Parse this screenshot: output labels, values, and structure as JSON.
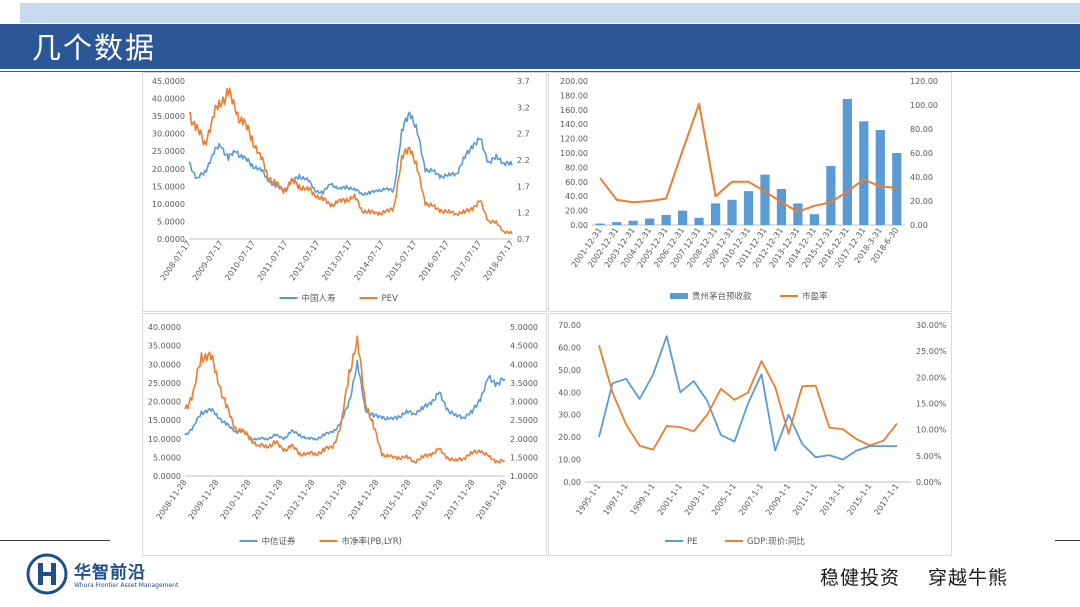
{
  "header": {
    "title": "几个数据"
  },
  "footer": {
    "logo_name": "华智前沿",
    "logo_en": "Whura Frontier Asset Management",
    "slogan_left": "稳健投资",
    "slogan_right": "穿越牛熊"
  },
  "colors": {
    "blue": "#5b9bd5",
    "orange": "#ed7d31",
    "header": "#2b5697",
    "axis": "#595959",
    "grid": "#d9d9d9"
  },
  "chart_data": [
    {
      "id": "c1",
      "type": "line",
      "x_ticks": [
        "2008-07-17",
        "2009-07-17",
        "2010-07-17",
        "2011-07-17",
        "2012-07-17",
        "2013-07-17",
        "2014-07-17",
        "2015-07-17",
        "2016-07-17",
        "2017-07-17",
        "2018-07-17"
      ],
      "y_left_ticks": [
        "45.0000",
        "40.0000",
        "35.0000",
        "30.0000",
        "25.0000",
        "20.0000",
        "15.0000",
        "10.0000",
        "5.0000",
        "0.0000"
      ],
      "y_right_ticks": [
        "3.7",
        "3.2",
        "2.7",
        "2.2",
        "1.7",
        "1.2",
        "0.7"
      ],
      "ylim_left": [
        0,
        45
      ],
      "ylim_right": [
        0.7,
        3.7
      ],
      "series": [
        {
          "name": "中国人寿",
          "axis": "left",
          "color": "#5b9bd5",
          "values": [
            22,
            17,
            19,
            24,
            27,
            23,
            25,
            23,
            21,
            20,
            17,
            15,
            14,
            16,
            18,
            17,
            14,
            13,
            16,
            14,
            15,
            14,
            13,
            13,
            14,
            14,
            14,
            30,
            37,
            30,
            20,
            19,
            18,
            18,
            19,
            23,
            27,
            28,
            22,
            23,
            22,
            21
          ]
        },
        {
          "name": "PEV",
          "axis": "right",
          "color": "#ed7d31",
          "values": [
            3.1,
            2.8,
            2.5,
            3.0,
            3.3,
            3.5,
            3.1,
            2.9,
            2.6,
            2.3,
            1.9,
            1.75,
            1.6,
            1.8,
            1.7,
            1.65,
            1.55,
            1.45,
            1.35,
            1.4,
            1.45,
            1.5,
            1.25,
            1.2,
            1.2,
            1.2,
            1.3,
            2.2,
            2.5,
            2.0,
            1.4,
            1.3,
            1.25,
            1.2,
            1.2,
            1.2,
            1.3,
            1.4,
            1.05,
            1.0,
            0.85,
            0.8
          ]
        }
      ]
    },
    {
      "id": "c2",
      "type": "bar",
      "categories": [
        "2001-12-31",
        "2002-12-31",
        "2003-12-31",
        "2004-12-31",
        "2005-12-31",
        "2006-12-31",
        "2007-12-31",
        "2008-12-31",
        "2009-12-31",
        "2010-12-31",
        "2011-12-31",
        "2012-12-31",
        "2013-12-31",
        "2014-12-31",
        "2015-12-31",
        "2016-12-31",
        "2017-12-31",
        "2018-3-31",
        "2018-6-30"
      ],
      "y_left_ticks": [
        "200.00",
        "180.00",
        "160.00",
        "140.00",
        "120.00",
        "100.00",
        "80.00",
        "60.00",
        "40.00",
        "20.00",
        "0.00"
      ],
      "y_right_ticks": [
        "120.00",
        "100.00",
        "80.00",
        "60.00",
        "40.00",
        "20.00",
        "0.00"
      ],
      "ylim_left": [
        0,
        200
      ],
      "ylim_right": [
        0,
        120
      ],
      "series": [
        {
          "name": "贵州茅台预收款",
          "axis": "left",
          "kind": "bar",
          "color": "#5b9bd5",
          "values": [
            2,
            4,
            6,
            9,
            14,
            20,
            10,
            30,
            35,
            47,
            70,
            50,
            30,
            15,
            82,
            175,
            144,
            132,
            100
          ]
        },
        {
          "name": "市盈率",
          "axis": "right",
          "kind": "line",
          "color": "#ed7d31",
          "values": [
            39,
            21,
            19,
            20,
            22,
            62,
            101,
            24,
            36,
            36,
            28,
            19,
            11,
            16,
            19,
            28,
            38,
            32,
            31
          ]
        }
      ]
    },
    {
      "id": "c3",
      "type": "line",
      "x_ticks": [
        "2008-11-28",
        "2009-11-28",
        "2010-11-28",
        "2011-11-28",
        "2012-11-28",
        "2013-11-28",
        "2014-11-28",
        "2015-11-28",
        "2016-11-28",
        "2017-11-28",
        "2018-11-28"
      ],
      "y_left_ticks": [
        "40.0000",
        "35.0000",
        "30.0000",
        "25.0000",
        "20.0000",
        "15.0000",
        "10.0000",
        "5.0000",
        "0.0000"
      ],
      "y_right_ticks": [
        "5.0000",
        "4.5000",
        "4.0000",
        "3.5000",
        "3.0000",
        "2.5000",
        "2.0000",
        "1.5000",
        "1.0000"
      ],
      "ylim_left": [
        0,
        40
      ],
      "ylim_right": [
        1.0,
        5.0
      ],
      "series": [
        {
          "name": "中信证券",
          "axis": "left",
          "color": "#5b9bd5",
          "values": [
            11,
            13,
            17,
            18,
            16,
            14,
            12,
            12,
            10,
            10,
            10,
            11,
            10,
            12,
            11,
            10,
            10,
            11,
            12,
            14,
            20,
            30,
            18,
            16,
            16,
            15,
            16,
            17,
            17,
            18,
            20,
            22,
            18,
            16,
            16,
            17,
            21,
            26,
            25,
            26
          ]
        },
        {
          "name": "市净率(PB,LYR)",
          "axis": "right",
          "color": "#ed7d31",
          "values": [
            2.8,
            3.2,
            4.2,
            4.3,
            3.6,
            2.9,
            2.3,
            2.2,
            2.0,
            1.8,
            1.8,
            1.9,
            1.7,
            1.8,
            1.6,
            1.6,
            1.6,
            1.7,
            1.8,
            2.3,
            3.8,
            4.6,
            3.0,
            2.3,
            1.6,
            1.5,
            1.5,
            1.5,
            1.4,
            1.5,
            1.6,
            1.7,
            1.5,
            1.4,
            1.5,
            1.6,
            1.7,
            1.5,
            1.4,
            1.4
          ]
        }
      ]
    },
    {
      "id": "c4",
      "type": "line",
      "x_ticks": [
        "1995-1-1",
        "1997-1-1",
        "1999-1-1",
        "2001-1-1",
        "2003-1-1",
        "2005-1-1",
        "2007-1-1",
        "2009-1-1",
        "2011-1-1",
        "2013-1-1",
        "2015-1-1",
        "2017-1-1"
      ],
      "y_left_ticks": [
        "70.00",
        "60.00",
        "50.00",
        "40.00",
        "30.00",
        "20.00",
        "10.00",
        "0.00"
      ],
      "y_right_ticks": [
        "30.00%",
        "25.00%",
        "20.00%",
        "15.00%",
        "10.00%",
        "5.00%",
        "0.00%"
      ],
      "ylim_left": [
        0,
        70
      ],
      "ylim_right": [
        0,
        30
      ],
      "series": [
        {
          "name": "PE",
          "axis": "left",
          "color": "#5b9bd5",
          "x": [
            1995,
            1996,
            1997,
            1998,
            1999,
            2000,
            2001,
            2002,
            2003,
            2004,
            2005,
            2006,
            2007,
            2008,
            2009,
            2010,
            2011,
            2012,
            2013,
            2014,
            2015,
            2016,
            2017
          ],
          "values": [
            20,
            44,
            46,
            37,
            48,
            65,
            40,
            45,
            36,
            21,
            18,
            35,
            48,
            14,
            30,
            17,
            11,
            12,
            10,
            14,
            16,
            16,
            16
          ]
        },
        {
          "name": "GDP:现价:同比",
          "axis": "right",
          "color": "#ed7d31",
          "x": [
            1995,
            1996,
            1997,
            1998,
            1999,
            2000,
            2001,
            2002,
            2003,
            2004,
            2005,
            2006,
            2007,
            2008,
            2009,
            2010,
            2011,
            2012,
            2013,
            2014,
            2015,
            2016,
            2017
          ],
          "values": [
            26.1,
            17.1,
            11.0,
            6.9,
            6.2,
            10.7,
            10.5,
            9.7,
            12.9,
            17.8,
            15.7,
            17.1,
            23.1,
            18.2,
            9.2,
            18.3,
            18.4,
            10.4,
            10.1,
            8.2,
            7.0,
            7.9,
            11.2
          ]
        }
      ]
    }
  ]
}
